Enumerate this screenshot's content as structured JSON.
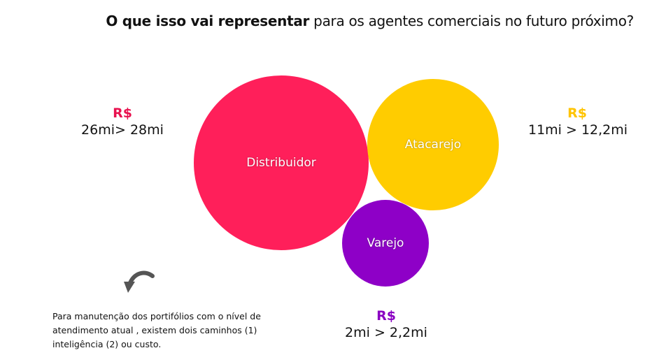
{
  "header": {
    "title_bold": "O que isso vai representar",
    "title_rest": " para os agentes comerciais no futuro próximo?"
  },
  "bubbles": {
    "distribuidor": {
      "label": "Distribuidor",
      "color": "#ff1f5a"
    },
    "atacarejo": {
      "label": "Atacarejo",
      "color": "#ffcc00"
    },
    "varejo": {
      "label": "Varejo",
      "color": "#8e00c7"
    }
  },
  "values": {
    "distribuidor": {
      "currency": "R$",
      "range": "26mi> 28mi",
      "color": "#e8124f"
    },
    "atacarejo": {
      "currency": "R$",
      "range": "11mi > 12,2mi",
      "color": "#ffc400"
    },
    "varejo": {
      "currency": "R$",
      "range": "2mi > 2,2mi",
      "color": "#8a00c2"
    }
  },
  "icons": {
    "arrow": "curved-arrow-down-left-icon"
  },
  "note": {
    "text": "Para manutenção dos portifólios com o nível de atendimento atual , existem dois caminhos (1) inteligência (2) ou custo."
  }
}
